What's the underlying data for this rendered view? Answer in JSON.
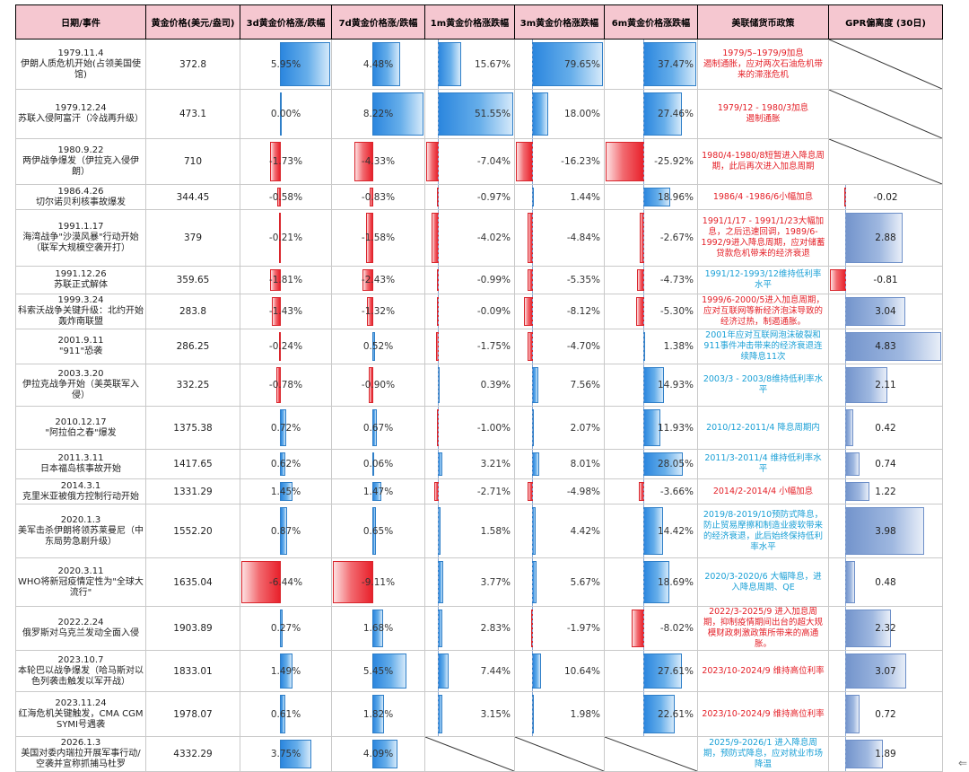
{
  "headers": {
    "event": "日期/事件",
    "price": "黄金价格(美元/盎司)",
    "d3": "3d黄金价格涨/跌幅",
    "d7": "7d黄金价格涨/跌幅",
    "m1": "1m黄金价格涨跌幅",
    "m3": "3m黄金价格涨跌幅",
    "m6": "6m黄金价格涨跌幅",
    "policy": "美联储货币政策",
    "gpr": "GPR偏离度 (30日)"
  },
  "colors": {
    "header_bg": "#f5c7d0",
    "positive": "#2b86de",
    "negative": "#e8212b",
    "policy_red": "#e41e26",
    "policy_blue": "#1aa0d6",
    "gpr": "#7394cc"
  },
  "rows": [
    {
      "date": "1979.11.4",
      "event": "伊朗人质危机开始(占领美国使馆)",
      "price": "372.8",
      "d3": "5.95%",
      "d7": "4.48%",
      "m1": "15.67%",
      "m3": "79.65%",
      "m6": "37.47%",
      "policy": "1979/5–1979/9加息\n遏制通胀，应对两次石油危机带来的滞涨危机",
      "pc": "red",
      "gpr": null
    },
    {
      "date": "1979.12.24",
      "event": "苏联入侵阿富汗（冷战再升级）",
      "price": "473.1",
      "d3": "0.00%",
      "d7": "8.22%",
      "m1": "51.55%",
      "m3": "18.00%",
      "m6": "27.46%",
      "policy": "1979/12 - 1980/3加息\n遏制通胀",
      "pc": "red",
      "gpr": null
    },
    {
      "date": "1980.9.22",
      "event": "两伊战争爆发（伊拉克入侵伊朗）",
      "price": "710",
      "d3": "-1.73%",
      "d7": "-4.33%",
      "m1": "-7.04%",
      "m3": "-16.23%",
      "m6": "-25.92%",
      "policy": "1980/4-1980/8短暂进入降息周期，此后再次进入加息周期",
      "pc": "red",
      "gpr": null
    },
    {
      "date": "1986.4.26",
      "event": "切尔诺贝利核事故爆发",
      "price": "344.45",
      "d3": "-0.58%",
      "d7": "-0.83%",
      "m1": "-0.97%",
      "m3": "1.44%",
      "m6": "18.96%",
      "policy": "1986/4 -1986/6小幅加息",
      "pc": "red",
      "gpr": "-0.02"
    },
    {
      "date": "1991.1.17",
      "event": "海湾战争\"沙漠风暴\"行动开始（联军大规模空袭开打）",
      "price": "379",
      "d3": "-0.21%",
      "d7": "-1.58%",
      "m1": "-4.02%",
      "m3": "-4.84%",
      "m6": "-2.67%",
      "policy": "1991/1/17 - 1991/1/23大幅加息，之后迅速回调，1989/6-1992/9进入降息周期，应对储蓄贷款危机带来的经济衰退",
      "pc": "red",
      "gpr": "2.88"
    },
    {
      "date": "1991.12.26",
      "event": "苏联正式解体",
      "price": "359.65",
      "d3": "-1.81%",
      "d7": "-2.43%",
      "m1": "-0.99%",
      "m3": "-5.35%",
      "m6": "-4.73%",
      "policy": "1991/12-1993/12维持低利率水平",
      "pc": "blue",
      "gpr": "-0.81"
    },
    {
      "date": "1999.3.24",
      "event": "科索沃战争关键升级：北约开始轰炸南联盟",
      "price": "283.8",
      "d3": "-1.43%",
      "d7": "-1.32%",
      "m1": "-0.09%",
      "m3": "-8.12%",
      "m6": "-5.30%",
      "policy": "1999/6-2000/5进入加息周期，应对互联网等新经济泡沫导致的经济过热，制遏通胀。",
      "pc": "red",
      "gpr": "3.04"
    },
    {
      "date": "2001.9.11",
      "event": "\"911\"恐袭",
      "price": "286.25",
      "d3": "-0.24%",
      "d7": "0.52%",
      "m1": "-1.75%",
      "m3": "-4.70%",
      "m6": "1.38%",
      "policy": "2001年应对互联网泡沫破裂和911事件冲击带来的经济衰退连续降息11次",
      "pc": "blue",
      "gpr": "4.83"
    },
    {
      "date": "2003.3.20",
      "event": "伊拉克战争开始（美英联军入侵）",
      "price": "332.25",
      "d3": "-0.78%",
      "d7": "-0.90%",
      "m1": "0.39%",
      "m3": "7.56%",
      "m6": "14.93%",
      "policy": "2003/3 - 2003/8维持低利率水平",
      "pc": "blue",
      "gpr": "2.11"
    },
    {
      "date": "2010.12.17",
      "event": "\"阿拉伯之春\"爆发",
      "price": "1375.38",
      "d3": "0.72%",
      "d7": "0.67%",
      "m1": "-1.00%",
      "m3": "2.07%",
      "m6": "11.93%",
      "policy": "2010/12-2011/4 降息周期内",
      "pc": "blue",
      "gpr": "0.42"
    },
    {
      "date": "2011.3.11",
      "event": "日本福岛核事故开始",
      "price": "1417.65",
      "d3": "0.62%",
      "d7": "0.06%",
      "m1": "3.21%",
      "m3": "8.01%",
      "m6": "28.05%",
      "policy": "2011/3-2011/4 维持低利率水平",
      "pc": "blue",
      "gpr": "0.74"
    },
    {
      "date": "2014.3.1",
      "event": "克里米亚被俄方控制行动开始",
      "price": "1331.29",
      "d3": "1.45%",
      "d7": "1.47%",
      "m1": "-2.71%",
      "m3": "-4.98%",
      "m6": "-3.66%",
      "policy": "2014/2-2014/4 小幅加息",
      "pc": "red",
      "gpr": "1.22"
    },
    {
      "date": "2020.1.3",
      "event": "美军击杀伊朗将领苏莱曼尼（中东局势急剧升级）",
      "price": "1552.20",
      "d3": "0.87%",
      "d7": "0.65%",
      "m1": "1.58%",
      "m3": "4.42%",
      "m6": "14.42%",
      "policy": "2019/8-2019/10预防式降息，防止贸易摩擦和制造业疲软带来的经济衰退，此后始终保持低利率水平",
      "pc": "blue",
      "gpr": "3.98"
    },
    {
      "date": "2020.3.11",
      "event": "WHO将新冠疫情定性为\"全球大流行\"",
      "price": "1635.04",
      "d3": "-6.44%",
      "d7": "-9.11%",
      "m1": "3.77%",
      "m3": "5.67%",
      "m6": "18.69%",
      "policy": "2020/3-2020/6 大幅降息，进入降息周期、QE",
      "pc": "blue",
      "gpr": "0.48"
    },
    {
      "date": "2022.2.24",
      "event": "俄罗斯对乌克兰发动全面入侵",
      "price": "1903.89",
      "d3": "0.27%",
      "d7": "1.68%",
      "m1": "2.83%",
      "m3": "-1.97%",
      "m6": "-8.02%",
      "policy": "2022/3-2025/9 进入加息周期，抑制疫情期间出台的超大规模财政刺激政策所带来的高通胀。",
      "pc": "red",
      "gpr": "2.32"
    },
    {
      "date": "2023.10.7",
      "event": "本轮巴以战争爆发（哈马斯对以色列袭击触发以军开战）",
      "price": "1833.01",
      "d3": "1.49%",
      "d7": "5.45%",
      "m1": "7.44%",
      "m3": "10.64%",
      "m6": "27.61%",
      "policy": "2023/10-2024/9 维持高位利率",
      "pc": "red",
      "gpr": "3.07"
    },
    {
      "date": "2023.11.24",
      "event": "红海危机关键触发，CMA CGM SYMI号遇袭",
      "price": "1978.07",
      "d3": "0.61%",
      "d7": "1.82%",
      "m1": "3.15%",
      "m3": "1.98%",
      "m6": "22.61%",
      "policy": "2023/10-2024/9 维持高位利率",
      "pc": "red",
      "gpr": "0.72"
    },
    {
      "date": "2026.1.3",
      "event": "美国对委内瑞拉开展军事行动/空袭并宣称抓捕马杜罗",
      "price": "4332.29",
      "d3": "3.75%",
      "d7": "4.09%",
      "m1": null,
      "m3": null,
      "m6": null,
      "policy": "2025/9-2026/1 进入降息周期，预防式降息，应对就业市场降温",
      "pc": "blue",
      "gpr": "1.89"
    }
  ],
  "scroll_glyph": "⇐"
}
